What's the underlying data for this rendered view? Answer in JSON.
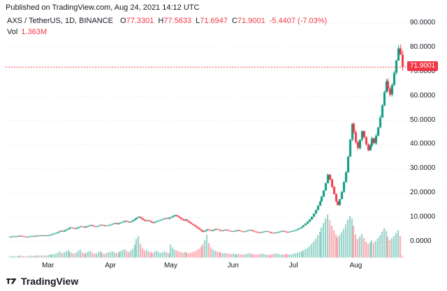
{
  "header": {
    "published_line": "Published on TradingView.com, Aug 24, 2021 14:12 UTC"
  },
  "legend": {
    "symbol_title": "AXS / TetherUS, 1D, BINANCE",
    "ohlc": [
      {
        "label": "O",
        "value": "77.3301"
      },
      {
        "label": "H",
        "value": "77.5633"
      },
      {
        "label": "L",
        "value": "71.6947"
      },
      {
        "label": "C",
        "value": "71.9001"
      }
    ],
    "change": "-5.4407 (-7.03%)",
    "vol_label": "Vol",
    "vol_value": "1.363M"
  },
  "price_axis": {
    "ticks": [
      "0.0000",
      "10.0000",
      "20.0000",
      "30.0000",
      "40.0000",
      "50.0000",
      "60.0000",
      "70.0000",
      "80.0000",
      "90.0000"
    ],
    "last_price_label": "71.9001"
  },
  "time_axis": {
    "months": [
      {
        "label": "Mar",
        "index": 19
      },
      {
        "label": "Apr",
        "index": 50
      },
      {
        "label": "May",
        "index": 80
      },
      {
        "label": "Jun",
        "index": 111
      },
      {
        "label": "Jul",
        "index": 141
      },
      {
        "label": "Aug",
        "index": 172
      }
    ]
  },
  "footer": {
    "brand": "TradingView"
  },
  "colors": {
    "up": "#089981",
    "down": "#f23645",
    "volume_up": "rgba(8,153,129,0.45)",
    "volume_down": "rgba(242,54,69,0.45)",
    "last_price_line": "#f23645",
    "grid": "rgba(120,123,134,0.22)",
    "grid_vertical": "rgba(120,123,134,0.12)",
    "text": "#131722"
  },
  "chart_data": {
    "type": "candlestick+volume",
    "title": "AXS / TetherUS, 1D, BINANCE",
    "ylim": [
      0,
      90
    ],
    "y_ticks": [
      0,
      10,
      20,
      30,
      40,
      50,
      60,
      70,
      80,
      90
    ],
    "last_close": 71.9001,
    "last_ohlc": {
      "open": 77.3301,
      "high": 77.5633,
      "low": 71.6947,
      "close": 71.9001,
      "change": -5.4407,
      "change_pct": -7.03
    },
    "volume_unit": "M",
    "closes": [
      2.0,
      2.1,
      2.2,
      2.1,
      2.3,
      2.4,
      2.2,
      2.0,
      1.9,
      2.1,
      2.2,
      2.3,
      2.2,
      2.4,
      2.5,
      2.4,
      2.6,
      2.5,
      2.6,
      2.6,
      2.8,
      3.0,
      3.3,
      3.6,
      4.0,
      4.4,
      4.1,
      4.6,
      5.0,
      5.4,
      5.8,
      5.5,
      5.2,
      5.6,
      6.0,
      6.3,
      6.1,
      5.8,
      6.2,
      6.5,
      6.8,
      6.4,
      6.1,
      6.3,
      6.6,
      6.9,
      6.7,
      6.4,
      6.6,
      6.8,
      7.0,
      7.3,
      7.6,
      7.2,
      7.5,
      7.8,
      8.1,
      8.5,
      8.2,
      7.9,
      8.3,
      8.8,
      9.3,
      9.8,
      10.2,
      9.6,
      9.0,
      8.5,
      8.8,
      8.4,
      8.0,
      7.7,
      8.1,
      8.4,
      8.7,
      9.0,
      9.3,
      9.6,
      9.4,
      9.8,
      10.0,
      10.5,
      10.9,
      10.4,
      9.8,
      9.2,
      8.7,
      9.1,
      8.5,
      7.9,
      7.3,
      6.8,
      6.2,
      5.6,
      5.0,
      4.4,
      4.0,
      4.5,
      5.0,
      4.7,
      4.4,
      4.8,
      5.2,
      4.9,
      4.6,
      4.3,
      4.6,
      4.9,
      4.6,
      4.3,
      4.1,
      4.3,
      4.5,
      4.7,
      4.4,
      4.2,
      4.0,
      4.3,
      4.6,
      4.8,
      4.5,
      4.2,
      4.0,
      3.8,
      3.6,
      3.9,
      4.1,
      4.3,
      4.0,
      3.8,
      3.6,
      3.5,
      3.7,
      3.9,
      4.1,
      4.4,
      4.2,
      4.0,
      3.9,
      4.1,
      4.3,
      4.5,
      4.8,
      5.2,
      5.6,
      6.1,
      6.7,
      7.4,
      8.2,
      9.1,
      10.2,
      11.5,
      13.0,
      14.8,
      16.5,
      18.5,
      21.0,
      24.0,
      27.5,
      25.5,
      22.5,
      19.5,
      16.5,
      15.0,
      17.5,
      20.5,
      24.5,
      28.5,
      35.0,
      42.0,
      48.5,
      45.0,
      41.0,
      38.5,
      42.0,
      45.5,
      43.0,
      40.0,
      37.5,
      39.5,
      42.5,
      40.5,
      43.5,
      47.0,
      51.0,
      56.0,
      61.5,
      66.0,
      63.0,
      60.5,
      64.5,
      69.5,
      74.5,
      79.5,
      77.0,
      71.9
    ],
    "volumes": [
      0.9,
      1.1,
      1.0,
      0.8,
      1.2,
      1.4,
      1.0,
      0.9,
      0.8,
      1.1,
      1.3,
      1.2,
      1.0,
      1.4,
      1.6,
      1.2,
      1.5,
      1.3,
      1.4,
      1.8,
      2.0,
      2.4,
      2.2,
      2.8,
      3.5,
      4.2,
      3.0,
      3.8,
      4.5,
      5.2,
      4.0,
      3.2,
      2.8,
      3.4,
      4.8,
      5.5,
      3.6,
      2.9,
      3.3,
      4.1,
      4.6,
      3.4,
      2.7,
      3.0,
      3.8,
      4.4,
      3.2,
      2.6,
      3.1,
      3.6,
      3.9,
      4.3,
      3.6,
      3.1,
      3.7,
      4.4,
      5.0,
      5.8,
      4.6,
      3.8,
      4.7,
      6.2,
      9.0,
      13.0,
      15.0,
      9.5,
      6.4,
      4.9,
      5.3,
      4.4,
      3.7,
      3.2,
      4.0,
      4.8,
      3.9,
      3.3,
      3.7,
      4.3,
      3.5,
      3.1,
      9.0,
      7.0,
      5.5,
      4.8,
      4.2,
      3.7,
      3.3,
      3.9,
      3.5,
      3.0,
      3.4,
      3.8,
      4.4,
      5.2,
      6.0,
      7.5,
      9.0,
      12.0,
      16.0,
      10.0,
      7.0,
      5.5,
      4.8,
      4.2,
      3.8,
      3.4,
      3.0,
      3.3,
      2.9,
      2.7,
      2.5,
      2.8,
      2.5,
      2.2,
      2.6,
      2.3,
      2.0,
      2.4,
      2.7,
      3.0,
      2.6,
      2.2,
      1.9,
      2.1,
      2.4,
      2.8,
      2.5,
      2.2,
      2.0,
      1.8,
      2.1,
      2.5,
      2.9,
      2.6,
      2.3,
      2.0,
      2.2,
      2.6,
      2.4,
      2.1,
      2.3,
      2.6,
      2.9,
      3.3,
      3.8,
      4.4,
      5.0,
      5.8,
      6.8,
      8.0,
      9.5,
      11.0,
      13.0,
      15.5,
      18.0,
      21.0,
      24.0,
      27.0,
      30.0,
      26.0,
      22.0,
      19.0,
      16.0,
      14.0,
      15.5,
      17.5,
      20.0,
      23.0,
      26.5,
      29.0,
      27.0,
      22.0,
      16.0,
      13.0,
      14.5,
      16.5,
      13.5,
      11.0,
      9.5,
      10.5,
      12.0,
      10.0,
      11.5,
      13.5,
      15.5,
      18.0,
      20.5,
      18.5,
      14.5,
      12.0,
      13.5,
      15.0,
      17.0,
      19.0,
      15.0,
      1.363
    ]
  }
}
